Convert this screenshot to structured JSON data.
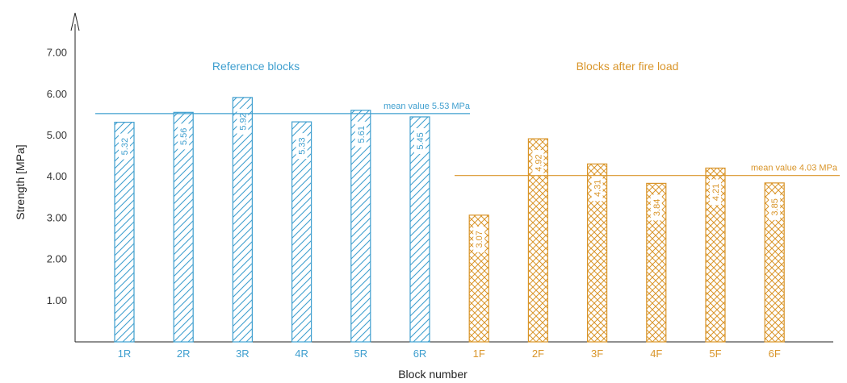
{
  "chart_data": {
    "type": "bar",
    "xlabel": "Block number",
    "ylabel": "Strength [MPa]",
    "ylim": [
      0,
      7.0
    ],
    "yticks": [
      "1.00",
      "2.00",
      "3.00",
      "4.00",
      "5.00",
      "6.00",
      "7.00"
    ],
    "grid": false,
    "groups": [
      {
        "title": "Reference blocks",
        "color": "#3f9fcf",
        "pattern": "diagonal-hatch",
        "categories": [
          "1R",
          "2R",
          "3R",
          "4R",
          "5R",
          "6R"
        ],
        "values": [
          5.32,
          5.56,
          5.92,
          5.33,
          5.61,
          5.45
        ],
        "labels": [
          "5.32",
          "5.56",
          "5.92",
          "5.33",
          "5.61",
          "5.45"
        ],
        "mean": 5.53,
        "mean_label": "mean value 5.53 MPa"
      },
      {
        "title": "Blocks after fire load",
        "color": "#d9952a",
        "pattern": "cross-hatch",
        "categories": [
          "1F",
          "2F",
          "3F",
          "4F",
          "5F",
          "6F"
        ],
        "values": [
          3.07,
          4.92,
          4.31,
          3.84,
          4.21,
          3.85
        ],
        "labels": [
          "3.07",
          "4.92",
          "4.31",
          "3.84",
          "4.21",
          "3.85"
        ],
        "mean": 4.03,
        "mean_label": "mean value 4.03 MPa"
      }
    ]
  }
}
